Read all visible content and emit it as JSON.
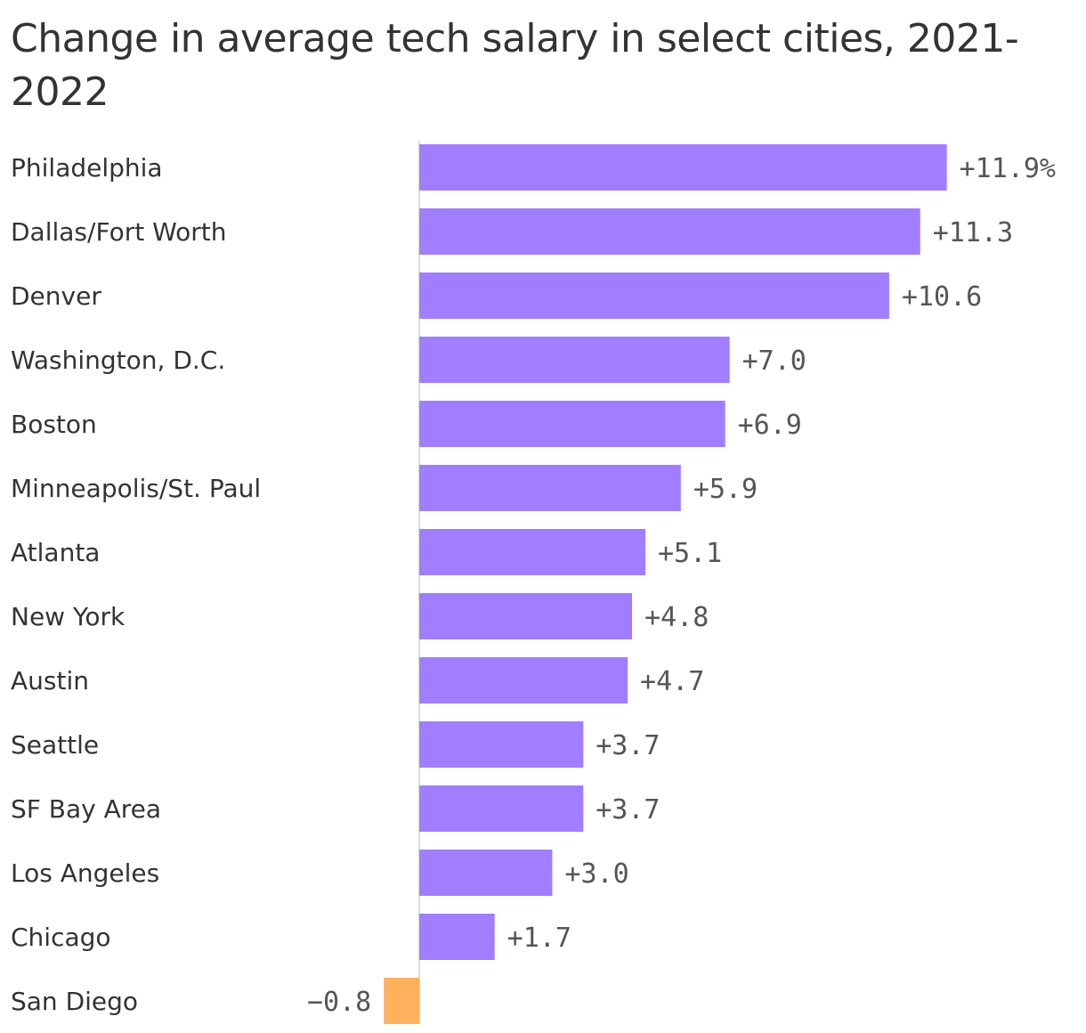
{
  "chart_data": {
    "type": "bar",
    "orientation": "horizontal",
    "title": "Change in average tech salary in select cities, 2021-2022",
    "categories": [
      "Philadelphia",
      "Dallas/Fort Worth",
      "Denver",
      "Washington, D.C.",
      "Boston",
      "Minneapolis/St. Paul",
      "Atlanta",
      "New York",
      "Austin",
      "Seattle",
      "SF Bay Area",
      "Los Angeles",
      "Chicago",
      "San Diego"
    ],
    "values": [
      11.9,
      11.3,
      10.6,
      7.0,
      6.9,
      5.9,
      5.1,
      4.8,
      4.7,
      3.7,
      3.7,
      3.0,
      1.7,
      -0.8
    ],
    "value_labels": [
      "+11.9%",
      "+11.3",
      "+10.6",
      "+7.0",
      "+6.9",
      "+5.9",
      "+5.1",
      "+4.8",
      "+4.7",
      "+3.7",
      "+3.7",
      "+3.0",
      "+1.7",
      "−0.8"
    ],
    "unit": "%",
    "xlim": [
      -0.8,
      11.9
    ],
    "grid": false,
    "legend": "none",
    "colors": {
      "positive": "#a07eff",
      "negative": "#ffb15e",
      "zero_line": "#dddddd"
    }
  }
}
